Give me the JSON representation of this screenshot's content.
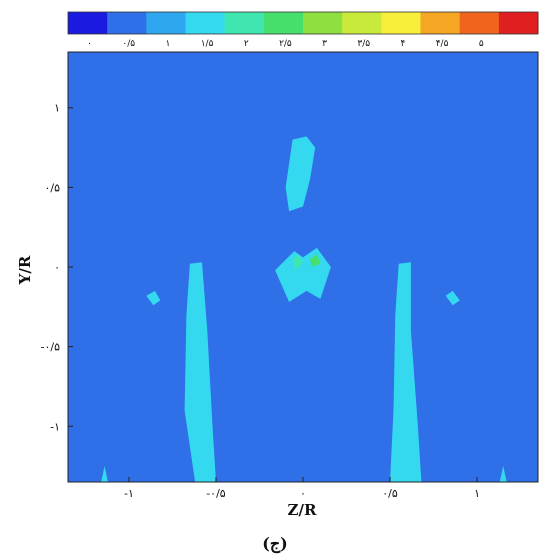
{
  "chart_data": {
    "type": "heatmap",
    "title": "",
    "colorbar": {
      "levels": [
        0,
        0.5,
        1,
        1.5,
        2,
        2.5,
        3,
        3.5,
        4,
        4.5,
        5
      ],
      "tick_labels": [
        "۰",
        "۰/۵",
        "۱",
        "۱/۵",
        "۲",
        "۲/۵",
        "۳",
        "۳/۵",
        "۴",
        "۴/۵",
        "۵"
      ],
      "colors": [
        "#1a1ae0",
        "#2f6fe8",
        "#2ea6f0",
        "#35d9ef",
        "#3fe6b0",
        "#45e06c",
        "#8ee040",
        "#c8ea3c",
        "#f7ef3a",
        "#f5a623",
        "#f0651e",
        "#e02020"
      ]
    },
    "xlabel": "Z/R",
    "ylabel": "Y/R",
    "xlim": [
      -1.35,
      1.35
    ],
    "ylim": [
      -1.35,
      1.35
    ],
    "x_ticks": [
      -1,
      -0.5,
      0,
      0.5,
      1
    ],
    "x_tick_labels": [
      "-۱",
      "-۰/۵",
      "۰",
      "۰/۵",
      "۱"
    ],
    "y_ticks": [
      1,
      0.5,
      0,
      -0.5,
      -1
    ],
    "y_tick_labels": [
      "۱",
      "۰/۵",
      "۰",
      "-۰/۵",
      "-۱"
    ],
    "background_level": 0.5,
    "background_color": "#2f6fe8",
    "features": [
      {
        "name": "left-jet-column",
        "level": 1,
        "points": [
          [
            -0.62,
            -1.35
          ],
          [
            -0.68,
            -0.9
          ],
          [
            -0.67,
            -0.3
          ],
          [
            -0.65,
            0.02
          ],
          [
            -0.58,
            0.03
          ],
          [
            -0.55,
            -0.4
          ],
          [
            -0.52,
            -1.0
          ],
          [
            -0.5,
            -1.35
          ]
        ]
      },
      {
        "name": "right-jet-column",
        "level": 1,
        "points": [
          [
            0.5,
            -1.35
          ],
          [
            0.52,
            -0.9
          ],
          [
            0.53,
            -0.3
          ],
          [
            0.55,
            0.02
          ],
          [
            0.62,
            0.03
          ],
          [
            0.62,
            -0.4
          ],
          [
            0.66,
            -1.0
          ],
          [
            0.68,
            -1.35
          ]
        ]
      },
      {
        "name": "center-upper-blob",
        "level": 1,
        "points": [
          [
            -0.06,
            0.8
          ],
          [
            -0.1,
            0.5
          ],
          [
            -0.08,
            0.35
          ],
          [
            0.0,
            0.38
          ],
          [
            0.04,
            0.55
          ],
          [
            0.07,
            0.75
          ],
          [
            0.02,
            0.82
          ]
        ]
      },
      {
        "name": "center-lower-blob",
        "level": 1,
        "points": [
          [
            -0.16,
            -0.02
          ],
          [
            -0.05,
            0.1
          ],
          [
            0.0,
            0.06
          ],
          [
            0.08,
            0.12
          ],
          [
            0.16,
            0.0
          ],
          [
            0.1,
            -0.2
          ],
          [
            0.02,
            -0.15
          ],
          [
            -0.08,
            -0.22
          ]
        ]
      },
      {
        "name": "center-core-left",
        "level": 1.5,
        "points": [
          [
            -0.06,
            0.04
          ],
          [
            -0.03,
            0.08
          ],
          [
            0.0,
            0.03
          ],
          [
            -0.04,
            -0.02
          ]
        ]
      },
      {
        "name": "center-core-right",
        "level": 2,
        "points": [
          [
            0.04,
            0.05
          ],
          [
            0.08,
            0.08
          ],
          [
            0.1,
            0.02
          ],
          [
            0.05,
            0.0
          ]
        ]
      },
      {
        "name": "left-side-blob",
        "level": 1,
        "points": [
          [
            -0.9,
            -0.18
          ],
          [
            -0.86,
            -0.24
          ],
          [
            -0.82,
            -0.21
          ],
          [
            -0.85,
            -0.15
          ]
        ]
      },
      {
        "name": "right-side-blob",
        "level": 1,
        "points": [
          [
            0.82,
            -0.18
          ],
          [
            0.86,
            -0.24
          ],
          [
            0.9,
            -0.21
          ],
          [
            0.86,
            -0.15
          ]
        ]
      },
      {
        "name": "left-edge-spike",
        "level": 1,
        "points": [
          [
            -1.16,
            -1.35
          ],
          [
            -1.14,
            -1.25
          ],
          [
            -1.12,
            -1.35
          ]
        ]
      },
      {
        "name": "right-edge-spike",
        "level": 1,
        "points": [
          [
            1.13,
            -1.35
          ],
          [
            1.15,
            -1.25
          ],
          [
            1.17,
            -1.35
          ]
        ]
      }
    ]
  },
  "panel_label": "(ج)"
}
